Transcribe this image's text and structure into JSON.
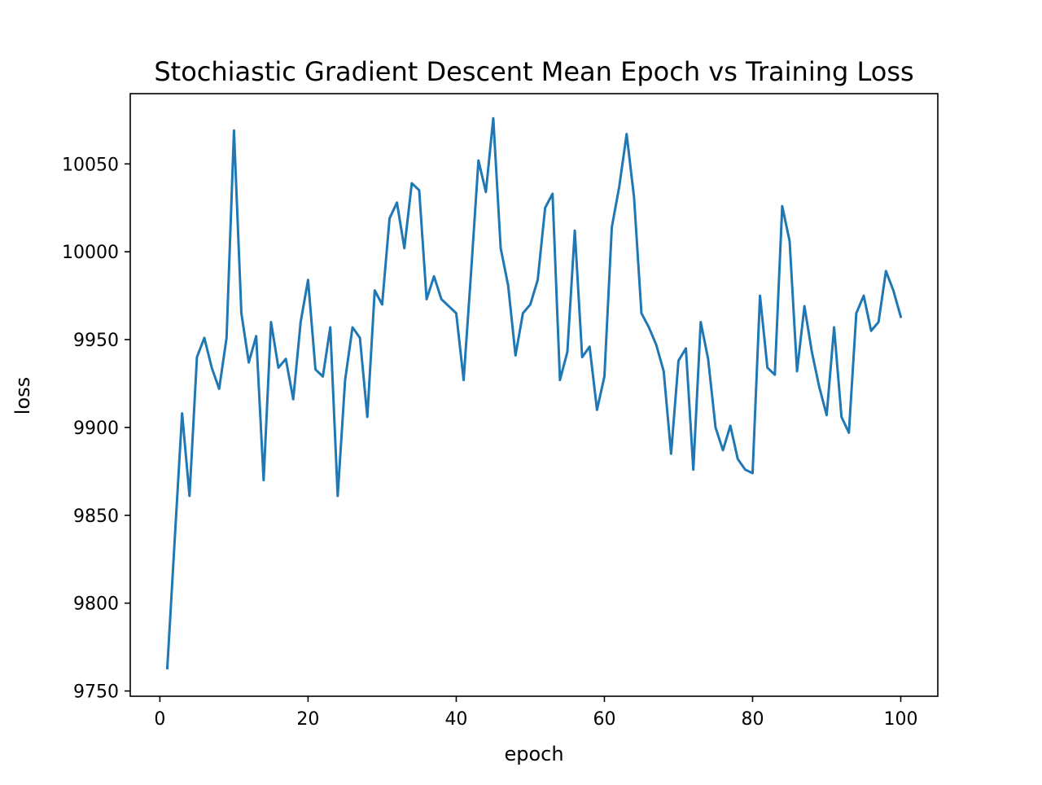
{
  "chart_data": {
    "type": "line",
    "title": "Stochiastic Gradient Descent Mean Epoch vs Training Loss",
    "xlabel": "epoch",
    "ylabel": "loss",
    "xlim": [
      -4,
      105
    ],
    "ylim": [
      9747,
      10090
    ],
    "xticks": [
      0,
      20,
      40,
      60,
      80,
      100
    ],
    "yticks": [
      9750,
      9800,
      9850,
      9900,
      9950,
      10000,
      10050
    ],
    "grid": false,
    "legend": "none",
    "colors": {
      "line": "#1f77b4",
      "axes": "#000000",
      "background": "#ffffff"
    },
    "series": [
      {
        "x": [
          1,
          2,
          3,
          4,
          5,
          6,
          7,
          8,
          9,
          10,
          11,
          12,
          13,
          14,
          15,
          16,
          17,
          18,
          19,
          20,
          21,
          22,
          23,
          24,
          25,
          26,
          27,
          28,
          29,
          30,
          31,
          32,
          33,
          34,
          35,
          36,
          37,
          38,
          39,
          40,
          41,
          42,
          43,
          44,
          45,
          46,
          47,
          48,
          49,
          50,
          51,
          52,
          53,
          54,
          55,
          56,
          57,
          58,
          59,
          60,
          61,
          62,
          63,
          64,
          65,
          66,
          67,
          68,
          69,
          70,
          71,
          72,
          73,
          74,
          75,
          76,
          77,
          78,
          79,
          80,
          81,
          82,
          83,
          84,
          85,
          86,
          87,
          88,
          89,
          90,
          91,
          92,
          93,
          94,
          95,
          96,
          97,
          98,
          99,
          100
        ],
        "values": [
          9763,
          9836,
          9908,
          9861,
          9940,
          9951,
          9934,
          9922,
          9951,
          10069,
          9965,
          9937,
          9952,
          9870,
          9960,
          9934,
          9939,
          9916,
          9960,
          9984,
          9933,
          9929,
          9957,
          9861,
          9927,
          9957,
          9951,
          9906,
          9978,
          9970,
          10019,
          10028,
          10002,
          10039,
          10035,
          9973,
          9986,
          9973,
          9969,
          9965,
          9927,
          9988,
          10052,
          10034,
          10076,
          10002,
          9981,
          9941,
          9965,
          9970,
          9984,
          10025,
          10033,
          9927,
          9943,
          10012,
          9940,
          9946,
          9910,
          9929,
          10014,
          10037,
          10067,
          10031,
          9965,
          9957,
          9947,
          9932,
          9885,
          9938,
          9945,
          9876,
          9960,
          9939,
          9900,
          9887,
          9901,
          9882,
          9876,
          9874,
          9975,
          9934,
          9930,
          10026,
          10006,
          9932,
          9969,
          9943,
          9923,
          9907,
          9957,
          9906,
          9897,
          9965,
          9975,
          9955,
          9960,
          9989,
          9978,
          9963
        ]
      }
    ]
  }
}
